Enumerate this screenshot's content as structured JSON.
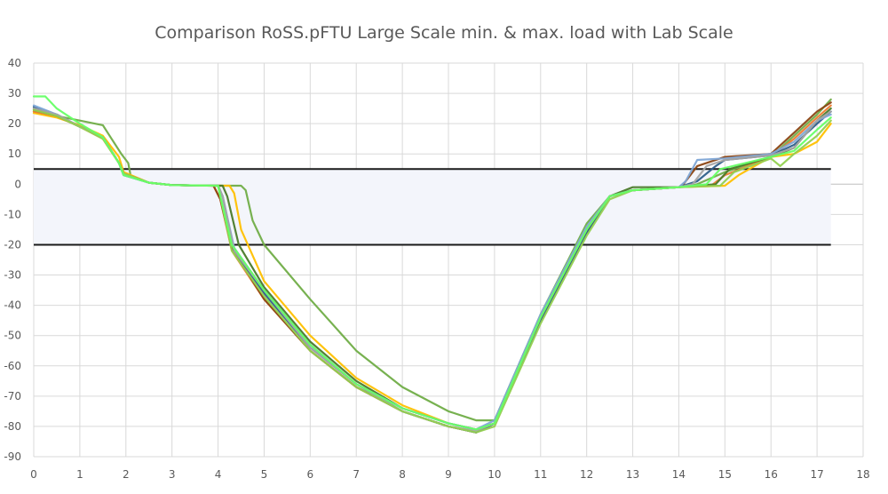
{
  "chart_data": {
    "type": "line",
    "title": "Comparison RoSS.pFTU Large Scale min. & max. load with Lab Scale",
    "xlabel": "",
    "ylabel": "",
    "xlim": [
      0,
      18
    ],
    "ylim": [
      -90,
      40
    ],
    "x_ticks": [
      "0",
      "1",
      "2",
      "3",
      "4",
      "5",
      "6",
      "7",
      "8",
      "9",
      "10",
      "11",
      "12",
      "13",
      "14",
      "15",
      "16",
      "17",
      "18"
    ],
    "y_ticks": [
      "40",
      "30",
      "20",
      "10",
      "0",
      "-10",
      "-20",
      "-30",
      "-40",
      "-50",
      "-60",
      "-70",
      "-80",
      "-90"
    ],
    "grid": true,
    "legend": "none",
    "limit_band": {
      "upper": 5,
      "lower": -20,
      "x_end": 17.3,
      "fill_color": "#f3f5fb",
      "line_color": "#1a1a1a"
    },
    "series": [
      {
        "color": "#70ad47",
        "points": [
          [
            0,
            24
          ],
          [
            0.5,
            22.5
          ],
          [
            1,
            21
          ],
          [
            1.5,
            19.5
          ],
          [
            1.9,
            10
          ],
          [
            2.05,
            7
          ],
          [
            2.1,
            3
          ],
          [
            2.5,
            0.5
          ],
          [
            3,
            -0.3
          ],
          [
            4,
            -0.5
          ],
          [
            4.5,
            -0.5
          ],
          [
            4.6,
            -2
          ],
          [
            4.75,
            -12
          ],
          [
            5,
            -20
          ],
          [
            6,
            -38
          ],
          [
            7,
            -55
          ],
          [
            8,
            -67
          ],
          [
            9,
            -75
          ],
          [
            9.6,
            -78
          ],
          [
            10,
            -78
          ],
          [
            11,
            -43
          ],
          [
            12,
            -13
          ],
          [
            12.5,
            -4
          ],
          [
            13,
            -2
          ],
          [
            14,
            -1
          ],
          [
            14.4,
            0
          ],
          [
            15,
            4
          ],
          [
            16,
            9
          ],
          [
            16.5,
            16
          ],
          [
            17,
            23
          ],
          [
            17.3,
            28
          ]
        ]
      },
      {
        "color": "#ffc000",
        "points": [
          [
            0,
            23.5
          ],
          [
            0.5,
            22
          ],
          [
            1,
            19.5
          ],
          [
            1.5,
            16
          ],
          [
            1.85,
            9
          ],
          [
            1.95,
            4
          ],
          [
            2.5,
            0.5
          ],
          [
            3,
            -0.3
          ],
          [
            4,
            -0.5
          ],
          [
            4.25,
            -0.5
          ],
          [
            4.35,
            -3
          ],
          [
            4.5,
            -15
          ],
          [
            5,
            -32
          ],
          [
            6,
            -50
          ],
          [
            7,
            -64
          ],
          [
            8,
            -73
          ],
          [
            9,
            -79
          ],
          [
            9.6,
            -81
          ],
          [
            10,
            -79
          ],
          [
            11,
            -44
          ],
          [
            12,
            -15
          ],
          [
            12.5,
            -4
          ],
          [
            13,
            -2
          ],
          [
            14,
            -1
          ],
          [
            15,
            -0.5
          ],
          [
            15.3,
            3
          ],
          [
            16,
            9
          ],
          [
            16.5,
            10
          ],
          [
            17,
            14
          ],
          [
            17.3,
            20
          ]
        ]
      },
      {
        "color": "#ed7d31",
        "points": [
          [
            0,
            24
          ],
          [
            0.5,
            22.5
          ],
          [
            1,
            19
          ],
          [
            1.5,
            15
          ],
          [
            1.85,
            7
          ],
          [
            1.95,
            3.5
          ],
          [
            2.5,
            0.5
          ],
          [
            3,
            -0.3
          ],
          [
            3.9,
            -0.5
          ],
          [
            4.05,
            -5
          ],
          [
            4.3,
            -22
          ],
          [
            5,
            -38
          ],
          [
            6,
            -55
          ],
          [
            7,
            -67
          ],
          [
            8,
            -75
          ],
          [
            9,
            -80
          ],
          [
            9.6,
            -82
          ],
          [
            10,
            -79
          ],
          [
            11,
            -45
          ],
          [
            12,
            -16
          ],
          [
            12.5,
            -4
          ],
          [
            13,
            -2
          ],
          [
            14,
            -1
          ],
          [
            14.7,
            -0.5
          ],
          [
            15,
            3
          ],
          [
            16,
            9
          ],
          [
            16.5,
            15
          ],
          [
            17,
            22
          ],
          [
            17.3,
            26
          ]
        ]
      },
      {
        "color": "#8b4513",
        "points": [
          [
            0,
            24.5
          ],
          [
            0.5,
            22.5
          ],
          [
            1,
            19
          ],
          [
            1.5,
            15.5
          ],
          [
            1.85,
            7
          ],
          [
            1.95,
            3.5
          ],
          [
            2.5,
            0.5
          ],
          [
            3,
            -0.3
          ],
          [
            3.9,
            -0.5
          ],
          [
            4.05,
            -5
          ],
          [
            4.3,
            -21
          ],
          [
            5,
            -38
          ],
          [
            6,
            -55
          ],
          [
            7,
            -67
          ],
          [
            8,
            -75
          ],
          [
            9,
            -80
          ],
          [
            9.6,
            -82
          ],
          [
            10,
            -79
          ],
          [
            11,
            -45
          ],
          [
            12,
            -16
          ],
          [
            12.5,
            -4
          ],
          [
            13,
            -2
          ],
          [
            14,
            -1
          ],
          [
            14.1,
            0
          ],
          [
            14.4,
            6
          ],
          [
            15,
            9
          ],
          [
            16,
            10
          ],
          [
            16.5,
            17
          ],
          [
            17,
            24
          ],
          [
            17.3,
            27
          ]
        ]
      },
      {
        "color": "#4a7a2a",
        "points": [
          [
            0,
            25
          ],
          [
            0.5,
            23
          ],
          [
            1,
            19
          ],
          [
            1.5,
            15.5
          ],
          [
            1.85,
            7
          ],
          [
            1.95,
            3.5
          ],
          [
            2.5,
            0.5
          ],
          [
            3,
            -0.3
          ],
          [
            4.1,
            -0.5
          ],
          [
            4.2,
            -4
          ],
          [
            4.45,
            -20
          ],
          [
            5,
            -34
          ],
          [
            6,
            -52
          ],
          [
            7,
            -65
          ],
          [
            8,
            -74
          ],
          [
            9,
            -79
          ],
          [
            9.6,
            -81
          ],
          [
            10,
            -79
          ],
          [
            11,
            -44
          ],
          [
            12,
            -15
          ],
          [
            12.5,
            -4
          ],
          [
            13,
            -1
          ],
          [
            14,
            -1
          ],
          [
            14.8,
            0
          ],
          [
            15.1,
            5
          ],
          [
            16,
            9
          ],
          [
            16.5,
            12
          ],
          [
            17,
            21
          ],
          [
            17.3,
            25
          ]
        ]
      },
      {
        "color": "#2e5f8a",
        "points": [
          [
            0,
            25.5
          ],
          [
            0.5,
            23
          ],
          [
            1,
            19
          ],
          [
            1.5,
            15.5
          ],
          [
            1.85,
            7
          ],
          [
            1.95,
            3
          ],
          [
            2.5,
            0.5
          ],
          [
            3,
            -0.3
          ],
          [
            4,
            -0.5
          ],
          [
            4.1,
            -4
          ],
          [
            4.35,
            -22
          ],
          [
            5,
            -36
          ],
          [
            6,
            -54
          ],
          [
            7,
            -66
          ],
          [
            8,
            -75
          ],
          [
            9,
            -80
          ],
          [
            9.6,
            -82
          ],
          [
            10,
            -79
          ],
          [
            11,
            -45
          ],
          [
            12,
            -16
          ],
          [
            12.5,
            -4
          ],
          [
            13,
            -2
          ],
          [
            14,
            -1
          ],
          [
            14.4,
            1
          ],
          [
            14.8,
            6
          ],
          [
            15,
            8
          ],
          [
            16,
            9.5
          ],
          [
            16.5,
            13
          ],
          [
            17,
            20
          ],
          [
            17.3,
            24
          ]
        ]
      },
      {
        "color": "#7fa7d6",
        "points": [
          [
            0,
            26
          ],
          [
            0.5,
            23
          ],
          [
            1,
            19
          ],
          [
            1.5,
            15.5
          ],
          [
            1.85,
            7
          ],
          [
            1.95,
            3
          ],
          [
            2.5,
            0.5
          ],
          [
            3,
            -0.3
          ],
          [
            4,
            -0.5
          ],
          [
            4.1,
            -4
          ],
          [
            4.35,
            -21
          ],
          [
            5,
            -35
          ],
          [
            6,
            -53
          ],
          [
            7,
            -66
          ],
          [
            8,
            -74
          ],
          [
            9,
            -79
          ],
          [
            9.6,
            -81
          ],
          [
            10,
            -78
          ],
          [
            11,
            -43
          ],
          [
            12,
            -14
          ],
          [
            12.5,
            -4
          ],
          [
            13,
            -2
          ],
          [
            14,
            -1
          ],
          [
            14.15,
            1
          ],
          [
            14.4,
            8
          ],
          [
            15,
            8.5
          ],
          [
            16,
            10
          ],
          [
            16.5,
            14
          ],
          [
            17,
            21
          ],
          [
            17.3,
            23
          ]
        ]
      },
      {
        "color": "#a5a5a5",
        "points": [
          [
            0,
            25
          ],
          [
            0.5,
            23
          ],
          [
            1,
            19
          ],
          [
            1.5,
            15.5
          ],
          [
            1.85,
            7
          ],
          [
            1.95,
            3.5
          ],
          [
            2.5,
            0.5
          ],
          [
            3,
            -0.3
          ],
          [
            4,
            -0.5
          ],
          [
            4.1,
            -4
          ],
          [
            4.35,
            -22
          ],
          [
            5,
            -35
          ],
          [
            6,
            -54
          ],
          [
            7,
            -66
          ],
          [
            8,
            -75
          ],
          [
            9,
            -80
          ],
          [
            9.6,
            -81.5
          ],
          [
            10,
            -79
          ],
          [
            11,
            -44
          ],
          [
            12,
            -15
          ],
          [
            12.5,
            -4
          ],
          [
            13,
            -2
          ],
          [
            14,
            -1
          ],
          [
            14.3,
            0
          ],
          [
            14.6,
            6
          ],
          [
            15,
            8
          ],
          [
            16,
            9.5
          ],
          [
            16.5,
            12
          ],
          [
            17,
            21
          ],
          [
            17.3,
            24
          ]
        ]
      },
      {
        "color": "#92d050",
        "points": [
          [
            0,
            24.5
          ],
          [
            0.5,
            22.5
          ],
          [
            1,
            19
          ],
          [
            1.5,
            15
          ],
          [
            1.85,
            7
          ],
          [
            1.95,
            3.5
          ],
          [
            2.5,
            0.5
          ],
          [
            3,
            -0.3
          ],
          [
            4,
            -0.5
          ],
          [
            4.05,
            -4
          ],
          [
            4.3,
            -22
          ],
          [
            5,
            -37
          ],
          [
            6,
            -55
          ],
          [
            7,
            -67
          ],
          [
            8,
            -75
          ],
          [
            9,
            -80
          ],
          [
            9.6,
            -82
          ],
          [
            10,
            -80
          ],
          [
            11,
            -46
          ],
          [
            12,
            -17
          ],
          [
            12.5,
            -5
          ],
          [
            13,
            -2
          ],
          [
            14,
            -1
          ],
          [
            14.9,
            -0.5
          ],
          [
            15.2,
            4
          ],
          [
            16,
            8.5
          ],
          [
            16.2,
            6
          ],
          [
            16.5,
            10
          ],
          [
            17,
            16
          ],
          [
            17.3,
            21
          ]
        ]
      },
      {
        "color": "#66ff66",
        "points": [
          [
            0,
            29
          ],
          [
            0.25,
            29
          ],
          [
            0.5,
            25
          ],
          [
            1,
            20
          ],
          [
            1.5,
            15.5
          ],
          [
            1.85,
            7
          ],
          [
            1.95,
            3
          ],
          [
            2.5,
            0.5
          ],
          [
            3,
            -0.3
          ],
          [
            4,
            -0.5
          ],
          [
            4.05,
            -4
          ],
          [
            4.3,
            -20
          ],
          [
            5,
            -35
          ],
          [
            6,
            -53
          ],
          [
            7,
            -66
          ],
          [
            8,
            -74
          ],
          [
            9,
            -79
          ],
          [
            9.6,
            -81
          ],
          [
            10,
            -79
          ],
          [
            11,
            -44
          ],
          [
            12,
            -15
          ],
          [
            12.5,
            -4
          ],
          [
            13,
            -2
          ],
          [
            14,
            -1
          ],
          [
            14.6,
            0
          ],
          [
            14.9,
            5
          ],
          [
            16,
            9
          ],
          [
            16.5,
            11
          ],
          [
            17,
            18
          ],
          [
            17.3,
            22
          ]
        ]
      }
    ]
  }
}
